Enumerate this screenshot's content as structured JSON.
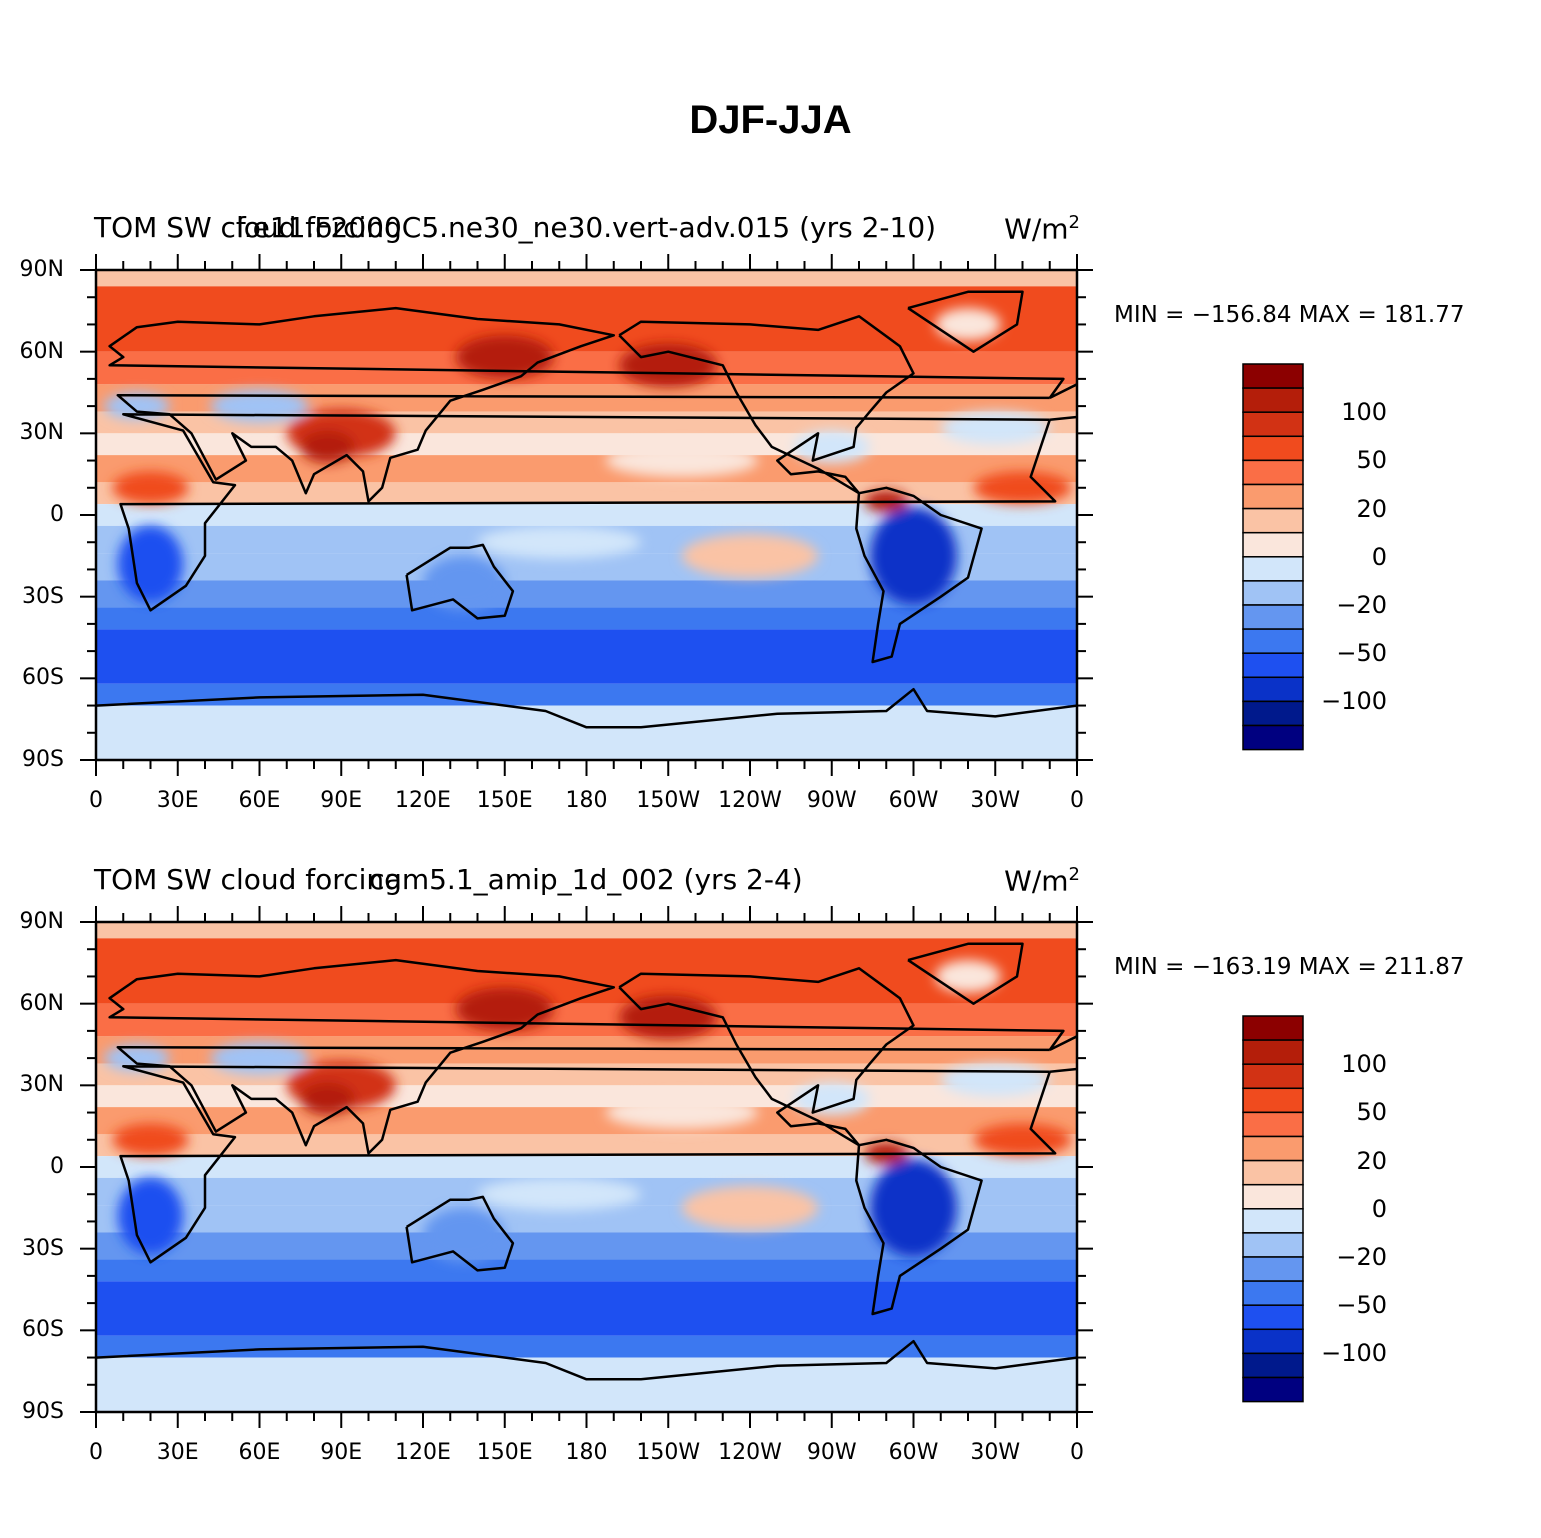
{
  "title": "DJF-JJA",
  "colorbar": {
    "colors": [
      "#000080",
      "#00198c",
      "#0a32c8",
      "#1e50f0",
      "#3c78f0",
      "#6496f0",
      "#a0c3f5",
      "#d2e6fa",
      "#fae6dc",
      "#fac3a5",
      "#fa9b6e",
      "#fa6e46",
      "#f04b1e",
      "#d23214",
      "#b41e0a",
      "#8c0000"
    ],
    "labels": [
      "100",
      "50",
      "20",
      "0",
      "−20",
      "−50",
      "−100"
    ]
  },
  "x_ticks": [
    "0",
    "30E",
    "60E",
    "90E",
    "120E",
    "150E",
    "180",
    "150W",
    "120W",
    "90W",
    "60W",
    "30W",
    "0"
  ],
  "y_ticks": [
    "90N",
    "60N",
    "30N",
    "0",
    "30S",
    "60S",
    "90S"
  ],
  "panels": [
    {
      "left_title": "TOM SW cloud forcing",
      "center_title": "f.e11.F2000C5.ne30_ne30.vert-adv.015 (yrs 2-10)",
      "units": "W/m",
      "units_sup": "2",
      "min_label": "MIN = −156.84",
      "max_label": "MAX = 181.77"
    },
    {
      "left_title": "TOM SW cloud forcing",
      "center_title": "cam5.1_amip_1d_002 (yrs 2-4)",
      "units": "W/m",
      "units_sup": "2",
      "min_label": "MIN = −163.19",
      "max_label": "MAX = 211.87"
    }
  ]
}
